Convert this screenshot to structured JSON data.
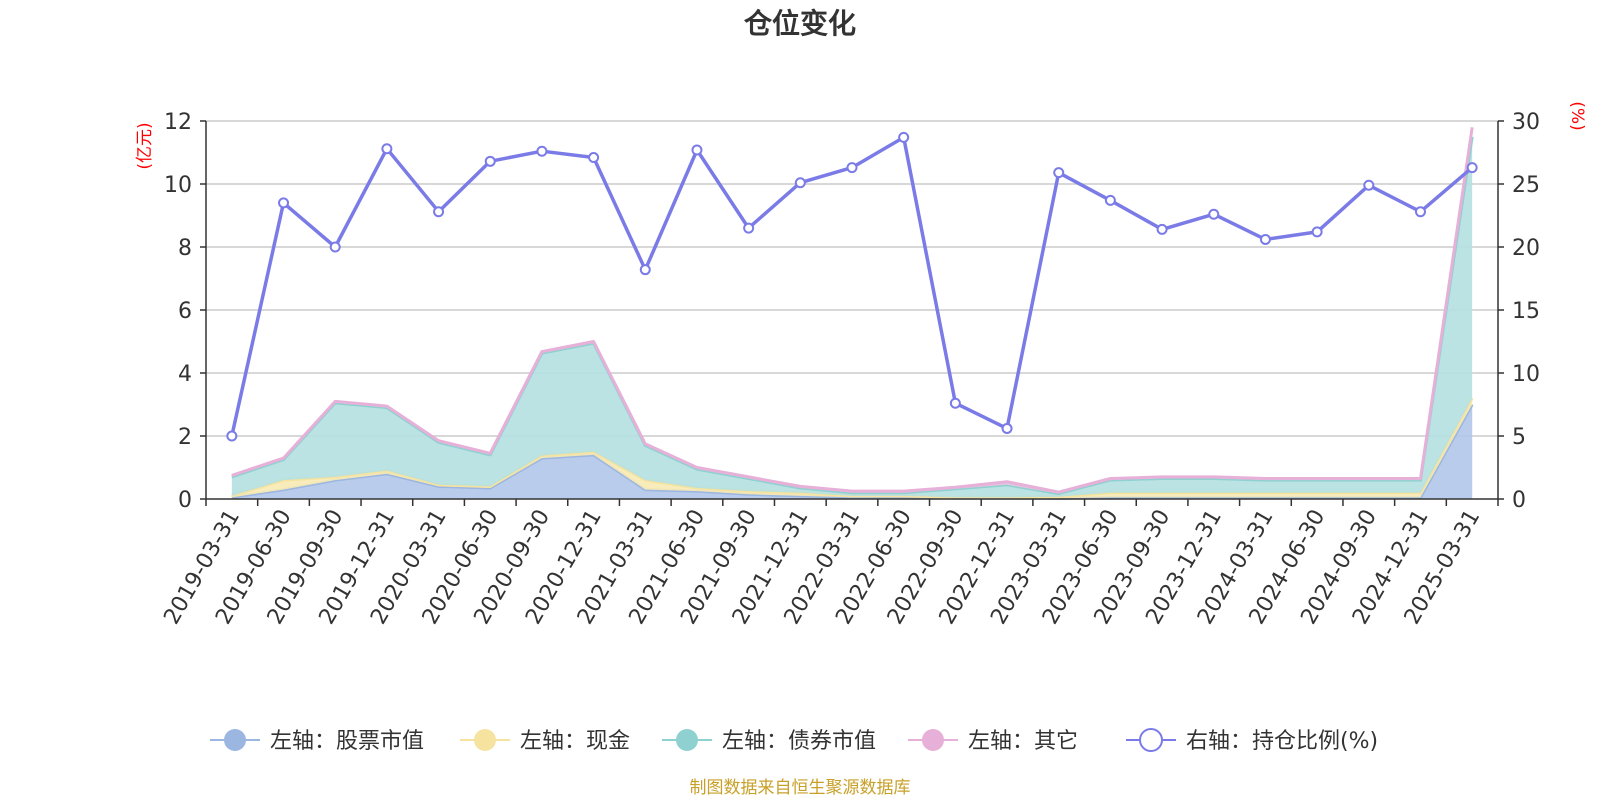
{
  "chart_data": {
    "type": "area",
    "title": "仓位变化",
    "categories": [
      "2019-03-31",
      "2019-06-30",
      "2019-09-30",
      "2019-12-31",
      "2020-03-31",
      "2020-06-30",
      "2020-09-30",
      "2020-12-31",
      "2021-03-31",
      "2021-06-30",
      "2021-09-30",
      "2021-12-31",
      "2022-03-31",
      "2022-06-30",
      "2022-09-30",
      "2022-12-31",
      "2023-03-31",
      "2023-06-30",
      "2023-09-30",
      "2023-12-31",
      "2024-03-31",
      "2024-06-30",
      "2024-09-30",
      "2024-12-31",
      "2025-03-31"
    ],
    "left_axis": {
      "unit": "(亿元)",
      "ylim": [
        0,
        12
      ],
      "ticks": [
        "0",
        "2",
        "4",
        "6",
        "8",
        "10",
        "12"
      ]
    },
    "right_axis": {
      "unit": "(%)",
      "ylim": [
        0,
        30
      ],
      "ticks": [
        "0",
        "5",
        "10",
        "15",
        "20",
        "25",
        "30"
      ]
    },
    "series": [
      {
        "name": "左轴：股票市值",
        "axis": "left",
        "kind": "stacked-area",
        "color": "#9bb6e0",
        "fill": "#b3c7ea",
        "values": [
          0.05,
          0.3,
          0.6,
          0.8,
          0.4,
          0.35,
          1.3,
          1.4,
          0.3,
          0.25,
          0.15,
          0.1,
          0.05,
          0.08,
          0.03,
          0.03,
          0.02,
          0.05,
          0.05,
          0.05,
          0.05,
          0.05,
          0.05,
          0.05,
          3.0
        ]
      },
      {
        "name": "左轴：现金",
        "axis": "left",
        "kind": "stacked-area",
        "color": "#f6e3a0",
        "fill": "#f8eab4",
        "values": [
          0.05,
          0.3,
          0.1,
          0.1,
          0.05,
          0.05,
          0.08,
          0.1,
          0.3,
          0.1,
          0.1,
          0.1,
          0.05,
          0.02,
          0.02,
          0.02,
          0.05,
          0.15,
          0.15,
          0.15,
          0.15,
          0.15,
          0.15,
          0.15,
          0.2
        ]
      },
      {
        "name": "左轴：债券市值",
        "axis": "left",
        "kind": "stacked-area",
        "color": "#8fd0d0",
        "fill": "#b5e0e0",
        "values": [
          0.6,
          0.65,
          2.35,
          2.0,
          1.35,
          1.0,
          3.25,
          3.45,
          1.1,
          0.6,
          0.4,
          0.15,
          0.1,
          0.1,
          0.27,
          0.4,
          0.1,
          0.4,
          0.45,
          0.45,
          0.4,
          0.4,
          0.4,
          0.4,
          8.3
        ]
      },
      {
        "name": "左轴：其它",
        "axis": "left",
        "kind": "stacked-area",
        "color": "#e6b0d8",
        "fill": "#eac4e0",
        "values": [
          0.05,
          0.05,
          0.05,
          0.05,
          0.05,
          0.05,
          0.05,
          0.05,
          0.05,
          0.05,
          0.05,
          0.05,
          0.05,
          0.05,
          0.05,
          0.1,
          0.05,
          0.05,
          0.05,
          0.05,
          0.05,
          0.05,
          0.05,
          0.05,
          0.3
        ]
      },
      {
        "name": "右轴：持仓比例(%)",
        "axis": "right",
        "kind": "line",
        "color": "#7b7be8",
        "values": [
          5.0,
          23.5,
          20.0,
          27.8,
          22.8,
          26.8,
          27.6,
          27.1,
          18.2,
          27.7,
          21.5,
          25.1,
          26.3,
          28.7,
          7.6,
          5.6,
          25.9,
          23.7,
          21.4,
          22.6,
          20.6,
          21.2,
          24.9,
          22.8,
          26.3
        ]
      }
    ],
    "grid": true,
    "legend_position": "bottom"
  },
  "source_text": "制图数据来自恒生聚源数据库"
}
